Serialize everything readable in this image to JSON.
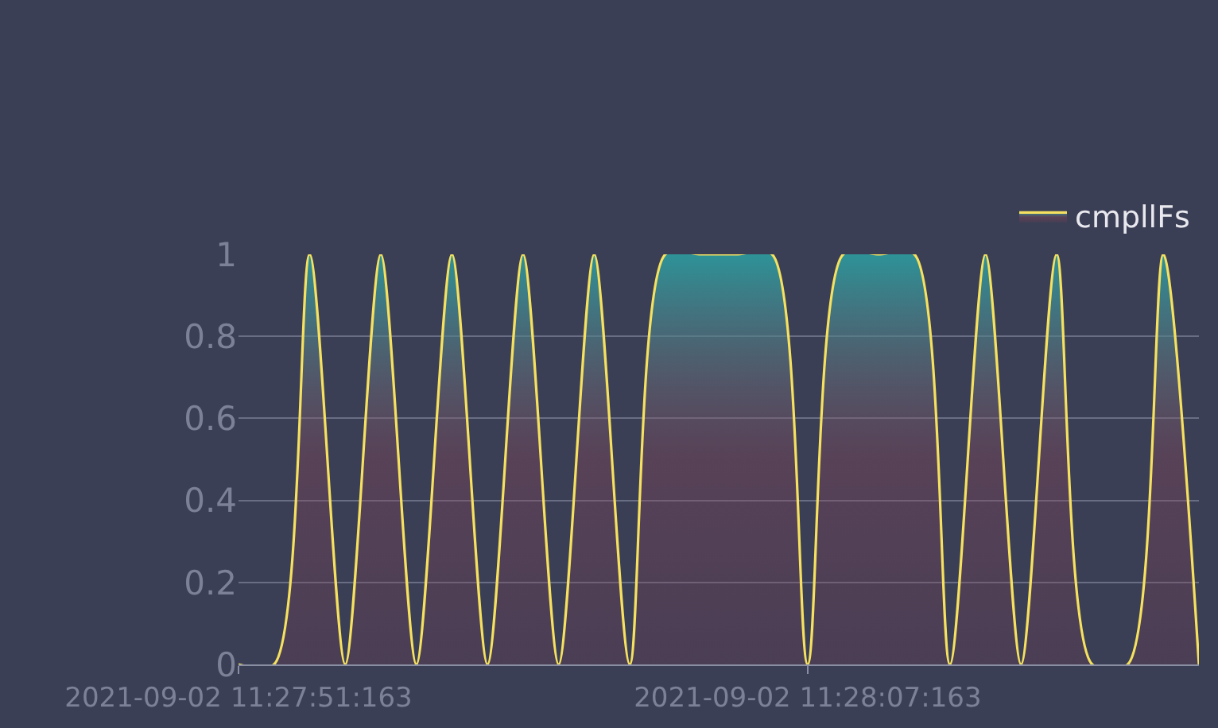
{
  "chart_data": {
    "type": "area",
    "categories": [
      "2021-09-02 11:27:51:163",
      null,
      null,
      null,
      null,
      null,
      null,
      null,
      null,
      null,
      null,
      null,
      null,
      null,
      null,
      null,
      "2021-09-02 11:28:07:163",
      null,
      null,
      null,
      null,
      null,
      null,
      null,
      null,
      null,
      null,
      null
    ],
    "series": [
      {
        "name": "cmpllFs",
        "color": "#f5e15f",
        "values": [
          0,
          0,
          1,
          0,
          1,
          0,
          1,
          0,
          1,
          0,
          1,
          0,
          1,
          1,
          1,
          1,
          0,
          1,
          1,
          1,
          0,
          1,
          0,
          1,
          0,
          0,
          1,
          0
        ]
      }
    ],
    "ylim": [
      0,
      1
    ],
    "yticks": [
      0,
      0.2,
      0.4,
      0.6,
      0.8,
      1
    ],
    "grid": "y",
    "legend": "top right",
    "marker": "none",
    "line_style": "solid"
  }
}
